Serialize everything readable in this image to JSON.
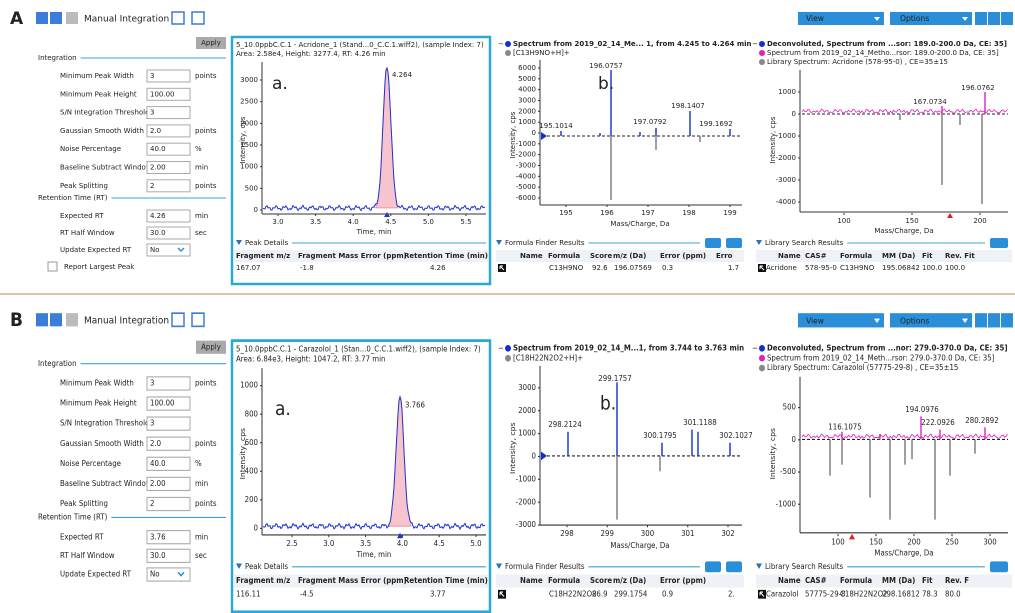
{
  "figure": {
    "panels": [
      {
        "label": "A",
        "toolbar": {
          "mode": "Manual Integration",
          "apply": "Apply",
          "view": "View",
          "options": "Options"
        },
        "settings": {
          "integration_title": "Integration",
          "integration": [
            {
              "label": "Minimum Peak Width",
              "value": "3",
              "unit": "points"
            },
            {
              "label": "Minimum Peak Height",
              "value": "100.00"
            },
            {
              "label": "S/N Integration Threshold",
              "value": "3"
            },
            {
              "label": "Gaussian Smooth Width",
              "value": "2.0",
              "unit": "points"
            },
            {
              "label": "Noise Percentage",
              "value": "40.0",
              "unit": "%"
            },
            {
              "label": "Baseline Subtract Window",
              "value": "2.00",
              "unit": "min"
            },
            {
              "label": "Peak Splitting",
              "value": "2",
              "unit": "points"
            }
          ],
          "rt_title": "Retention Time (RT)",
          "rt": [
            {
              "label": "Expected RT",
              "value": "4.26",
              "unit": "min"
            },
            {
              "label": "RT Half Window",
              "value": "30.0",
              "unit": "sec"
            },
            {
              "label": "Update Expected RT",
              "value": "No"
            }
          ],
          "checkbox": "Report Largest Peak"
        },
        "chromatogram": {
          "title": [
            "5_10.0ppbC.C.1 - Acridone_1 (Stand...0_C.C.1.wiff2), (sample Index: 7)",
            "Area: 2.58e4, Height: 3277.4, RT: 4.26 min"
          ],
          "y_label": "Intensity, cps",
          "x_label": "Time, min",
          "yticks": [
            "3000",
            "2500",
            "2000",
            "1500",
            "1000",
            "500",
            "0"
          ],
          "xticks": [
            "3.0",
            "3.5",
            "4.0",
            "4.5",
            "5.0",
            "5.5"
          ],
          "peak_labels": [
            "4.264"
          ],
          "annotation": "a."
        },
        "peak_details": {
          "title": "Peak Details",
          "columns": [
            "Fragment m/z",
            "Fragment Mass Error (ppm)",
            "Retention Time (min)"
          ],
          "rows": [
            [
              "167.07",
              "-1.8",
              "4.26"
            ]
          ]
        },
        "spectrum": {
          "title": [
            "Spectrum from 2019_02_14_Me... 1, from 4.245 to 4.264 min",
            "[C13H9NO+H]+"
          ],
          "y_label": "Intensity, cps",
          "x_label": "Mass/Charge, Da",
          "yticks": [
            "6000",
            "5000",
            "4000",
            "3000",
            "2000",
            "1000",
            "0",
            "-1000",
            "-2000",
            "-3000",
            "-4000",
            "-5000",
            "-6000"
          ],
          "xticks": [
            "195",
            "196",
            "197",
            "198",
            "199"
          ],
          "peak_labels": [
            "196.0757",
            "195.1014",
            "197.0792",
            "198.1407",
            "199.1692"
          ],
          "annotation": "b."
        },
        "formula_finder": {
          "title": "Formula Finder Results",
          "columns": [
            "Name",
            "Formula",
            "Score",
            "m/z (Da)",
            "Error (ppm)",
            "Erro"
          ],
          "rows": [
            [
              "C13H9NO",
              "92.6",
              "196.07569",
              "0.3",
              "1.7"
            ]
          ]
        },
        "deconvoluted": {
          "title": [
            "Deconvoluted, Spectrum from ...sor: 189.0-200.0 Da, CE: 35]",
            "Spectrum from 2019_02_14_Metho...rsor: 189.0-200.0 Da, CE: 35]",
            "Library Spectrum: Acridone (578-95-0) , CE=35±15"
          ],
          "y_label": "Intensity, cps",
          "x_label": "Mass/Charge, Da",
          "yticks": [
            "1000",
            "0",
            "-1000",
            "-2000",
            "-3000",
            "-4000"
          ],
          "xticks": [
            "100",
            "150",
            "200"
          ],
          "peak_labels": [
            "196.0762",
            "167.0734"
          ]
        },
        "library_search": {
          "title": "Library Search Results",
          "columns": [
            "Name",
            "CAS#",
            "Formula",
            "MM (Da)",
            "Fit",
            "Rev. Fit"
          ],
          "rows": [
            [
              "Acridone",
              "578-95-0",
              "C13H9NO",
              "195.06842",
              "100.0",
              "100.0"
            ]
          ]
        }
      },
      {
        "label": "B",
        "toolbar": {
          "mode": "Manual Integration",
          "apply": "Apply",
          "view": "View",
          "options": "Options"
        },
        "settings": {
          "integration_title": "Integration",
          "integration": [
            {
              "label": "Minimum Peak Width",
              "value": "3",
              "unit": "points"
            },
            {
              "label": "Minimum Peak Height",
              "value": "100.00"
            },
            {
              "label": "S/N Integration Threshold",
              "value": "3"
            },
            {
              "label": "Gaussian Smooth Width",
              "value": "2.0",
              "unit": "points"
            },
            {
              "label": "Noise Percentage",
              "value": "40.0",
              "unit": "%"
            },
            {
              "label": "Baseline Subtract Window",
              "value": "2.00",
              "unit": "min"
            },
            {
              "label": "Peak Splitting",
              "value": "2",
              "unit": "points"
            }
          ],
          "rt_title": "Retention Time (RT)",
          "rt": [
            {
              "label": "Expected RT",
              "value": "3.76",
              "unit": "min"
            },
            {
              "label": "RT Half Window",
              "value": "30.0",
              "unit": "sec"
            },
            {
              "label": "Update Expected RT",
              "value": "No"
            }
          ]
        },
        "chromatogram": {
          "title": [
            "5_10.0ppbC.C.1 - Carazolol_1 (Stan...0_C.C.1.wiff2), (sample Index: 7)",
            "Area: 6.84e3, Height: 1047.2, RT: 3.77 min"
          ],
          "y_label": "Intensity, cps",
          "x_label": "Time, min",
          "yticks": [
            "1000",
            "800",
            "600",
            "400",
            "200",
            "0"
          ],
          "xticks": [
            "2.5",
            "3.0",
            "3.5",
            "4.0",
            "4.5",
            "5.0"
          ],
          "peak_labels": [
            "3.766"
          ],
          "annotation": "a."
        },
        "peak_details": {
          "title": "Peak Details",
          "columns": [
            "Fragment m/z",
            "Fragment Mass Error (ppm)",
            "Retention Time (min)"
          ],
          "rows": [
            [
              "116.11",
              "-4.5",
              "3.77"
            ]
          ]
        },
        "spectrum": {
          "title": [
            "Spectrum from 2019_02_14_M...1, from 3.744 to 3.763 min",
            "[C18H22N2O2+H]+"
          ],
          "y_label": "Intensity, cps",
          "x_label": "Mass/Charge, Da",
          "yticks": [
            "3000",
            "2000",
            "1000",
            "0",
            "-1000",
            "-2000",
            "-3000"
          ],
          "xticks": [
            "298",
            "299",
            "300",
            "301",
            "302"
          ],
          "peak_labels": [
            "299.1757",
            "298.2124",
            "300.1795",
            "301.1188",
            "302.1027"
          ],
          "annotation": "b."
        },
        "formula_finder": {
          "title": "Formula Finder Results",
          "columns": [
            "Name",
            "Formula",
            "Score",
            "m/z (Da)",
            "Error (ppm)"
          ],
          "rows": [
            [
              "C18H22N2O2",
              "86.9",
              "299.1754",
              "0.9",
              "2."
            ]
          ]
        },
        "deconvoluted": {
          "title": [
            "Deconvoluted, Spectrum from ...nor: 279.0-370.0 Da, CE: 35]",
            "Spectrum from 2019_02_14_Meth...rsor: 279.0-370.0 Da, CE: 35]",
            "Library Spectrum: Carazolol (57775-29-8) , CE=35±15"
          ],
          "y_label": "Intensity, cps",
          "x_label": "Mass/Charge, Da",
          "yticks": [
            "500",
            "0",
            "-500",
            "-1000"
          ],
          "xticks": [
            "100",
            "150",
            "200",
            "250",
            "300"
          ],
          "peak_labels": [
            "116.1075",
            "194.0976",
            "222.0926",
            "280.2892"
          ]
        },
        "library_search": {
          "title": "Library Search Results",
          "columns": [
            "Name",
            "CAS#",
            "Formula",
            "MM (Da)",
            "Fit",
            "Rev. F"
          ],
          "rows": [
            [
              "Carazolol",
              "57775-29-8",
              "C18H22N2O2",
              "298.16812",
              "78.3",
              "80.0"
            ]
          ]
        }
      }
    ]
  }
}
